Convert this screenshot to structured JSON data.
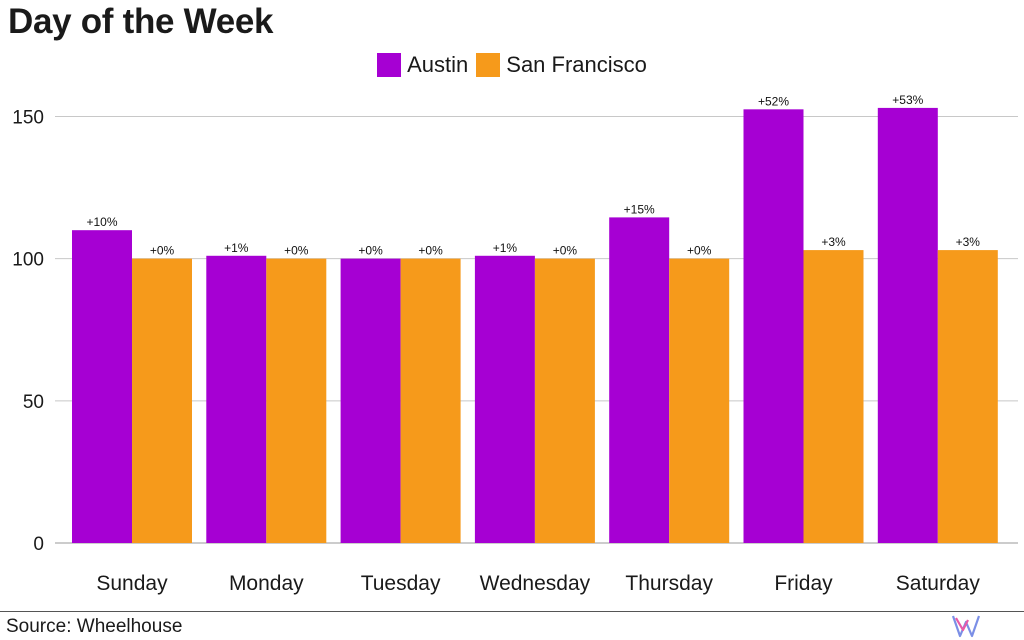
{
  "chart_data": {
    "type": "bar",
    "title": "Day of the Week",
    "categories": [
      "Sunday",
      "Monday",
      "Tuesday",
      "Wednesday",
      "Thursday",
      "Friday",
      "Saturday"
    ],
    "series": [
      {
        "name": "Austin",
        "color": "#a600d3",
        "values": [
          110,
          101,
          100,
          101,
          114.5,
          152.5,
          153
        ],
        "labels": [
          "+10%",
          "+1%",
          "+0%",
          "+1%",
          "+15%",
          "+52%",
          "+53%"
        ]
      },
      {
        "name": "San Francisco",
        "color": "#f69a1b",
        "values": [
          100,
          100,
          100,
          100,
          100,
          103,
          103
        ],
        "labels": [
          "+0%",
          "+0%",
          "+0%",
          "+0%",
          "+0%",
          "+3%",
          "+3%"
        ]
      }
    ],
    "yticks": [
      0,
      50,
      100,
      150
    ],
    "ylim": [
      0,
      160
    ],
    "grid": true,
    "legend_position": "top-center"
  },
  "footer": {
    "source": "Source: Wheelhouse",
    "logo_icon": "wheelhouse-logo-icon"
  }
}
